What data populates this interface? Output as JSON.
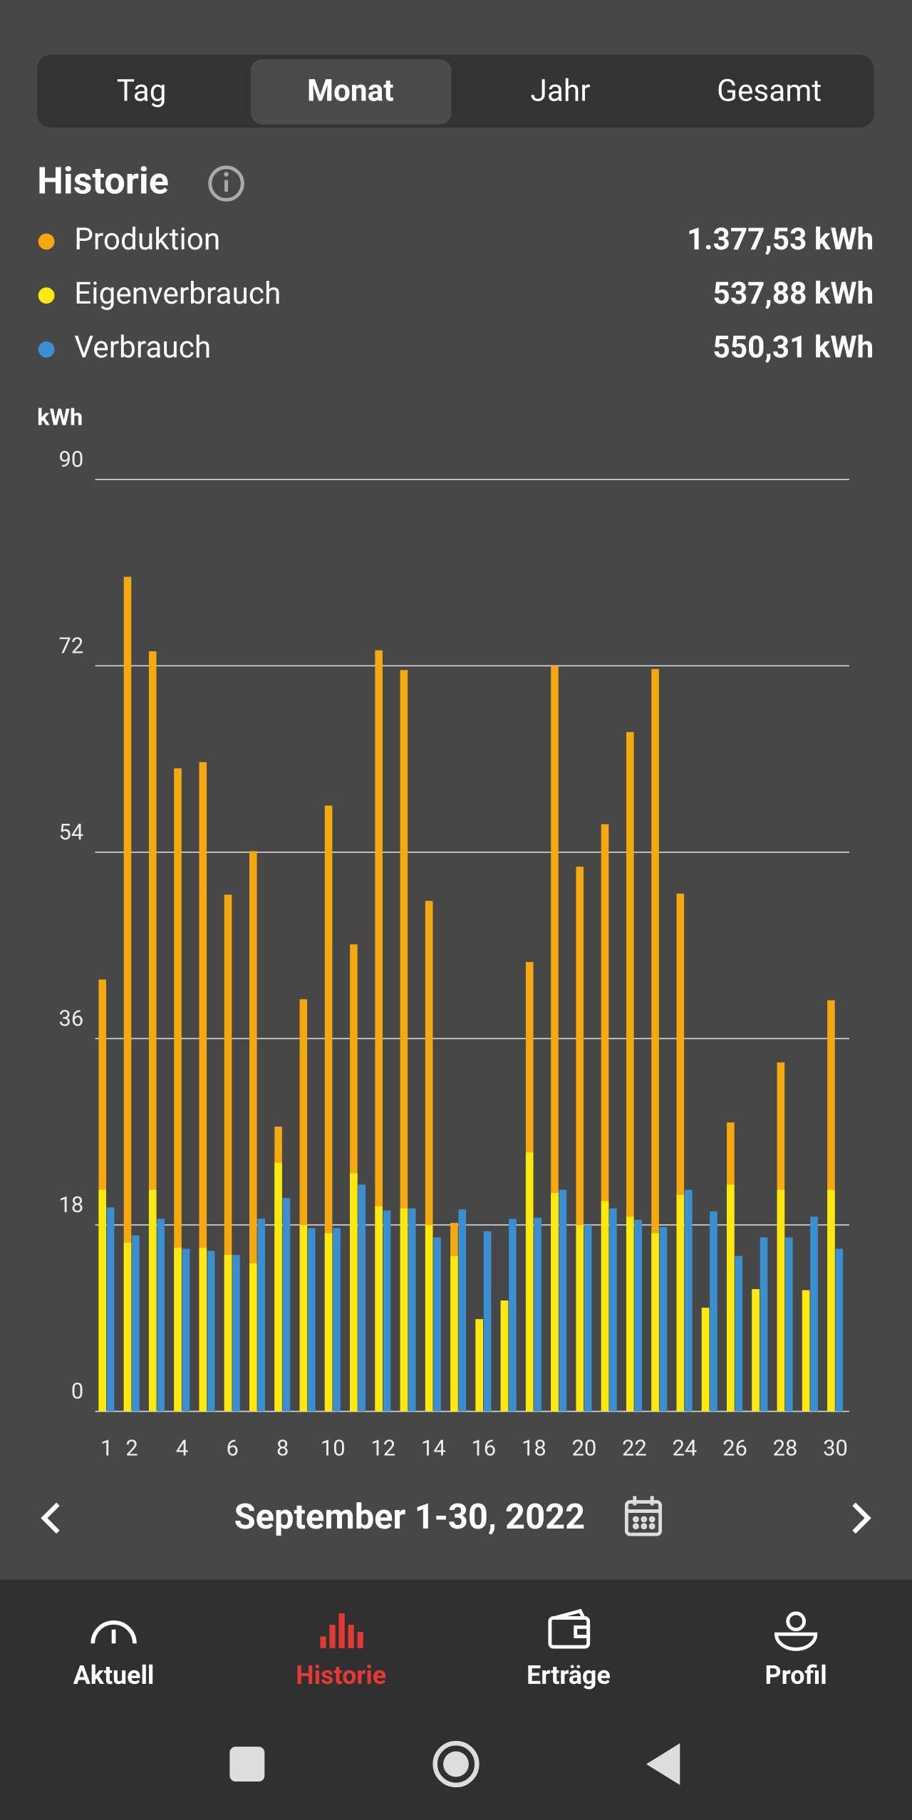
{
  "tabs": [
    "Tag",
    "Monat",
    "Jahr",
    "Gesamt"
  ],
  "header": {
    "title": "Historie"
  },
  "chart_data": {
    "type": "bar",
    "y_label": "kWh",
    "categories": [
      "1",
      "2",
      null,
      "4",
      null,
      "6",
      null,
      "8",
      null,
      "10",
      null,
      "12",
      null,
      "14",
      null,
      "16",
      null,
      "18",
      null,
      "20",
      null,
      "22",
      null,
      "24",
      null,
      "26",
      null,
      "28",
      null,
      "30"
    ],
    "series": [
      {
        "name": "Produktion",
        "color": "#f5a80f",
        "total": "1.377,53 kWh",
        "values": [
          41.7,
          80.6,
          73.4,
          62.1,
          62.7,
          49.9,
          54.1,
          27.5,
          39.8,
          58.5,
          45.1,
          73.5,
          71.6,
          49.3,
          18.2,
          8.9,
          10.7,
          43.4,
          72.0,
          52.6,
          56.7,
          65.6,
          71.7,
          50.0,
          10.0,
          27.9,
          11.8,
          33.7,
          11.7,
          39.7
        ]
      },
      {
        "name": "Eigenverbrauch",
        "color": "#fde910",
        "total": "537,88 kWh",
        "values": [
          21.4,
          16.3,
          21.4,
          15.8,
          15.8,
          15.1,
          14.3,
          24.0,
          18.0,
          17.2,
          23.0,
          19.8,
          19.6,
          18.0,
          15.0,
          8.9,
          10.7,
          25.0,
          21.1,
          18.0,
          20.3,
          18.8,
          17.2,
          20.9,
          10.0,
          21.9,
          11.8,
          21.4,
          11.7,
          21.4
        ]
      },
      {
        "name": "Verbrauch",
        "color": "#3a8fd0",
        "total": "550,31 kWh",
        "values": [
          19.7,
          17.0,
          18.6,
          15.7,
          15.5,
          15.1,
          18.6,
          20.6,
          17.7,
          17.7,
          21.9,
          19.4,
          19.6,
          16.8,
          19.5,
          17.4,
          18.6,
          18.7,
          21.4,
          18.0,
          19.6,
          18.5,
          17.8,
          21.4,
          19.3,
          15.0,
          16.8,
          16.8,
          18.8,
          15.7
        ]
      }
    ],
    "ylim": [
      0,
      90
    ],
    "yticks": [
      0,
      18,
      36,
      54,
      72,
      90
    ],
    "grid": true
  },
  "date_range": "September 1-30, 2022",
  "nav": [
    "Aktuell",
    "Historie",
    "Erträge",
    "Profil"
  ]
}
